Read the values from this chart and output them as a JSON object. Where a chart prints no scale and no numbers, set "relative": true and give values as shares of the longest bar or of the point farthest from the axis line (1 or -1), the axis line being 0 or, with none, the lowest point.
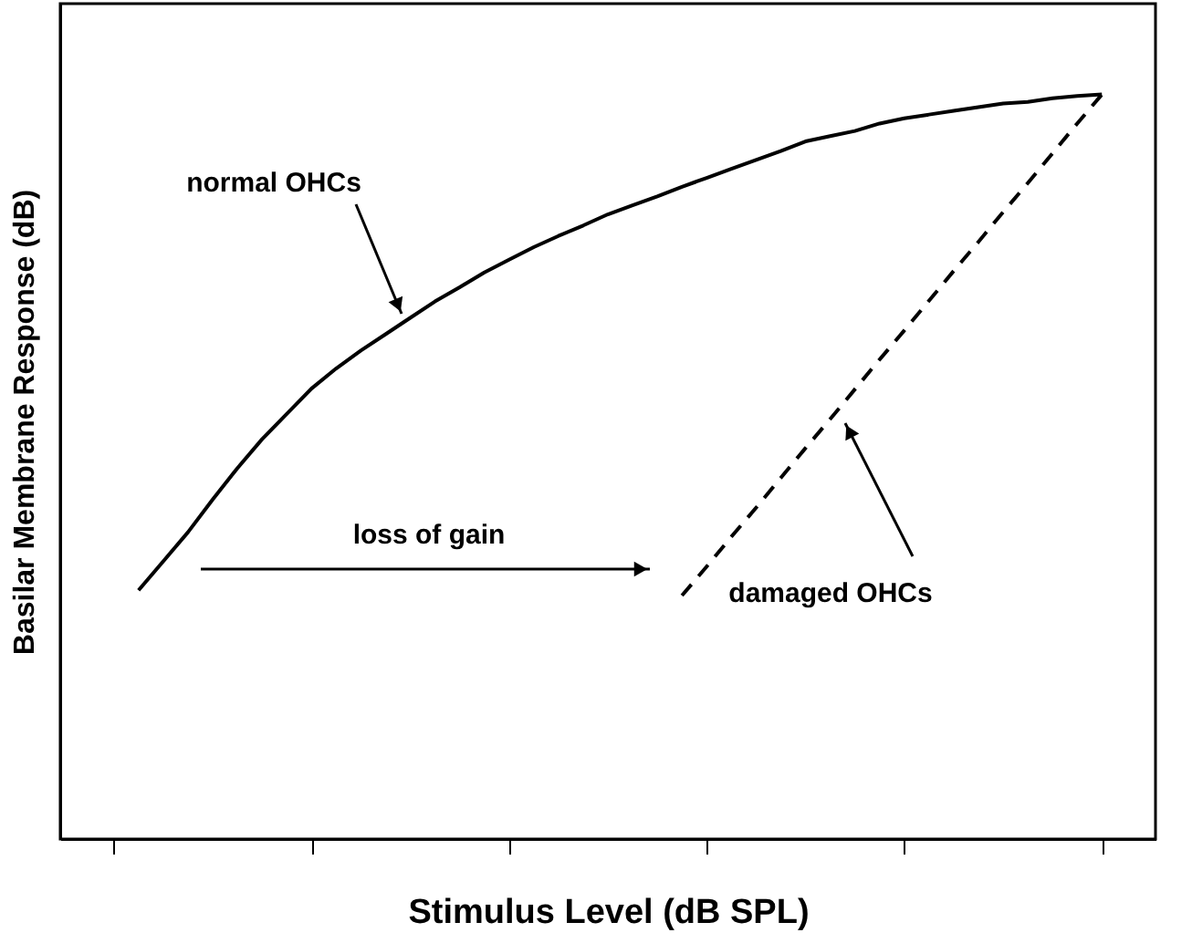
{
  "chart_data": {
    "type": "line",
    "relative": true,
    "xlabel": "Stimulus Level (dB SPL)",
    "ylabel": "Basilar Membrane Response (dB)",
    "tick_labels": false,
    "grid": false,
    "marker": "none",
    "categories": [
      null,
      null,
      null,
      null,
      null,
      null,
      null,
      null,
      null,
      null,
      null,
      null,
      null,
      null,
      null,
      null,
      null,
      null,
      null,
      null,
      null,
      null,
      null,
      null,
      null,
      null,
      null,
      null,
      null,
      null,
      null,
      null,
      null,
      null,
      null,
      null,
      null,
      null,
      null,
      null,
      null
    ],
    "series": [
      {
        "color": "#000000",
        "line_style": "solid",
        "values": [
          null,
          0.334,
          0.373,
          0.412,
          0.456,
          0.498,
          0.537,
          0.571,
          0.605,
          0.632,
          0.656,
          0.678,
          0.7,
          0.722,
          0.741,
          0.761,
          0.778,
          0.795,
          0.81,
          0.824,
          0.839,
          0.851,
          0.863,
          0.876,
          0.888,
          0.9,
          0.912,
          0.924,
          0.937,
          0.944,
          0.951,
          0.961,
          0.968,
          0.973,
          0.978,
          0.983,
          0.988,
          0.99,
          0.995,
          0.998,
          1.0
        ]
      },
      {
        "color": "#000000",
        "line_style": "dashed",
        "values": [
          null,
          null,
          null,
          null,
          null,
          null,
          null,
          null,
          null,
          null,
          null,
          null,
          null,
          null,
          null,
          null,
          null,
          null,
          null,
          null,
          null,
          null,
          null,
          0.327,
          0.366,
          0.406,
          0.445,
          0.485,
          0.525,
          0.564,
          0.604,
          0.644,
          0.683,
          0.723,
          0.763,
          0.802,
          0.842,
          0.881,
          0.921,
          0.961,
          1.0
        ]
      }
    ],
    "annotations": [
      "normal OHCs",
      "loss of gain",
      "damaged OHCs"
    ]
  }
}
